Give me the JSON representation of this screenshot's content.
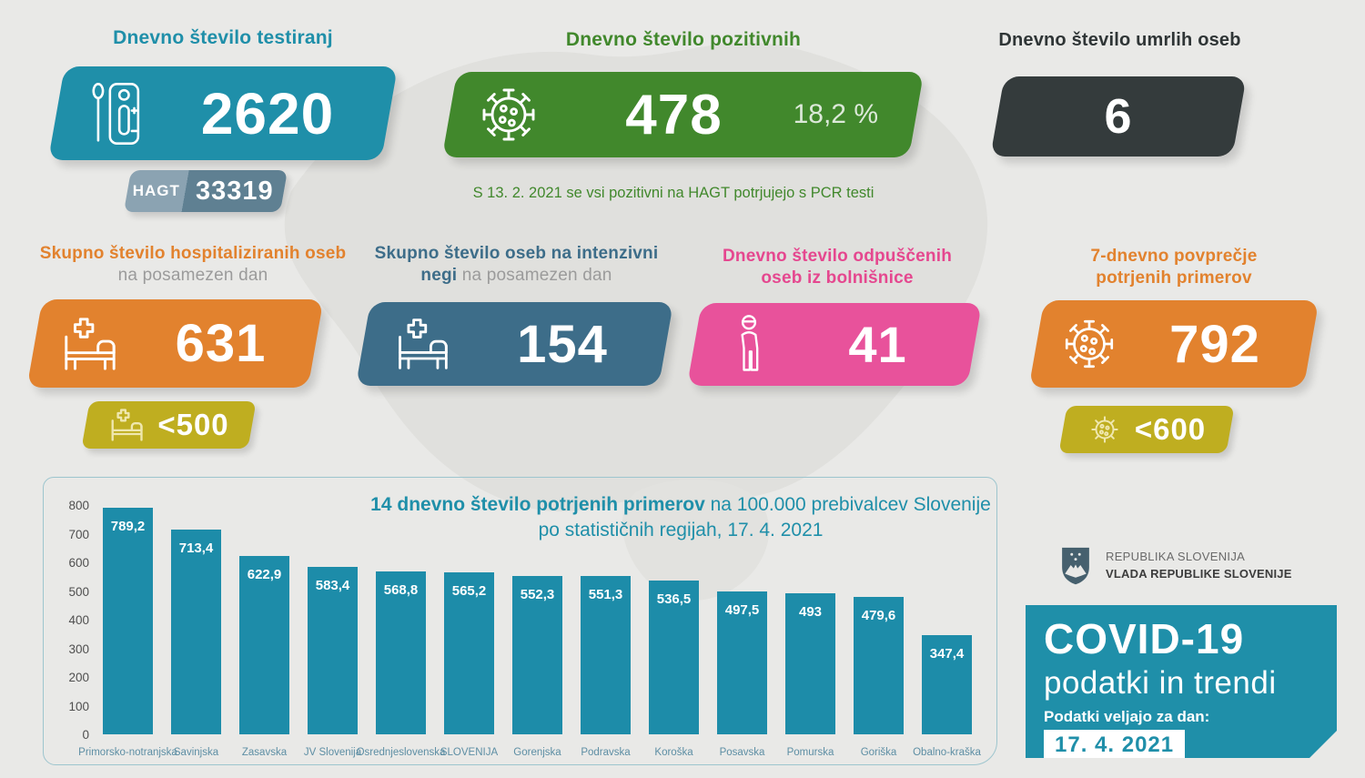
{
  "page": {
    "background": "#e9e9e7"
  },
  "colors": {
    "teal": "#1f8fa9",
    "green": "#41882c",
    "dark": "#343b3c",
    "orange": "#e2822e",
    "steel_blue": "#3d6d89",
    "pink": "#e8529b",
    "olive_badge": "#bfae20",
    "hagt_light": "#8ba3b2",
    "hagt_dark": "#5f8092",
    "bar_color": "#1d8ca9"
  },
  "cards": {
    "tests": {
      "title": "Dnevno število testiranj",
      "value": "2620",
      "hagt_label": "HAGT",
      "hagt_value": "33319"
    },
    "positive": {
      "title": "Dnevno število pozitivnih",
      "value": "478",
      "share": "18,2 %",
      "note": "S 13. 2. 2021 se vsi pozitivni na HAGT potrjujejo s PCR testi"
    },
    "deaths": {
      "title": "Dnevno število umrlih oseb",
      "value": "6"
    },
    "hospital": {
      "title_accent": "Skupno število hospitaliziranih oseb",
      "title_muted": " na posamezen dan",
      "value": "631",
      "badge": "<500"
    },
    "icu": {
      "title_accent": "Skupno število oseb na intenzivni negi",
      "title_muted": " na posamezen dan",
      "value": "154"
    },
    "discharged": {
      "title": "Dnevno število odpuščenih oseb iz bolnišnice",
      "value": "41"
    },
    "avg7": {
      "title": "7-dnevno povprečje potrjenih primerov",
      "value": "792",
      "badge": "<600"
    }
  },
  "chart_data": {
    "type": "bar",
    "title_bold": "14 dnevno število potrjenih primerov",
    "title_rest": " na 100.000 prebivalcev Slovenije po statističnih regijah, 17. 4. 2021",
    "categories": [
      "Primorsko-notranjska",
      "Savinjska",
      "Zasavska",
      "JV Slovenija",
      "Osrednjeslovenska",
      "SLOVENIJA",
      "Gorenjska",
      "Podravska",
      "Koroška",
      "Posavska",
      "Pomurska",
      "Goriška",
      "Obalno-kraška"
    ],
    "values": [
      789.2,
      713.4,
      622.9,
      583.4,
      568.8,
      565.2,
      552.3,
      551.3,
      536.5,
      497.5,
      493,
      479.6,
      347.4
    ],
    "value_labels": [
      "789,2",
      "713,4",
      "622,9",
      "583,4",
      "568,8",
      "565,2",
      "552,3",
      "551,3",
      "536,5",
      "497,5",
      "493",
      "479,6",
      "347,4"
    ],
    "ylim": [
      0,
      800
    ],
    "yticks": [
      0,
      100,
      200,
      300,
      400,
      500,
      600,
      700,
      800
    ],
    "grid": false,
    "legend": false,
    "bar_color": "#1d8ca9"
  },
  "government": {
    "line1": "REPUBLIKA SLOVENIJA",
    "line2": "VLADA REPUBLIKE SLOVENIJE"
  },
  "covid_panel": {
    "title": "COVID-19",
    "subtitle": "podatki in trendi",
    "label": "Podatki veljajo za dan:",
    "date": "17. 4. 2021"
  }
}
